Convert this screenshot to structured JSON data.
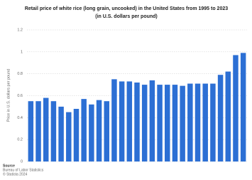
{
  "chart_data": {
    "type": "bar",
    "title": "Retail price of white rice (long grain, uncooked) in the United States from 1995 to 2023",
    "subtitle": "(in U.S. dollars per pound)",
    "y_label": "Price in U.S. dollars per pound",
    "values": [
      0.55,
      0.55,
      0.58,
      0.55,
      0.5,
      0.45,
      0.48,
      0.57,
      0.52,
      0.56,
      0.55,
      0.75,
      0.73,
      0.73,
      0.72,
      0.7,
      0.74,
      0.7,
      0.7,
      0.7,
      0.69,
      0.71,
      0.71,
      0.71,
      0.71,
      0.79,
      0.82,
      0.97,
      0.99
    ],
    "color": "#2c6fd4",
    "ylim": [
      0,
      1.2
    ],
    "yticks": [
      0,
      0.2,
      0.4,
      0.6,
      0.8,
      1,
      1.2
    ],
    "grid": true,
    "source": {
      "heading": "Source",
      "name": "Bureau of Labor Statistics",
      "copyright": "© Statista 2024"
    }
  }
}
